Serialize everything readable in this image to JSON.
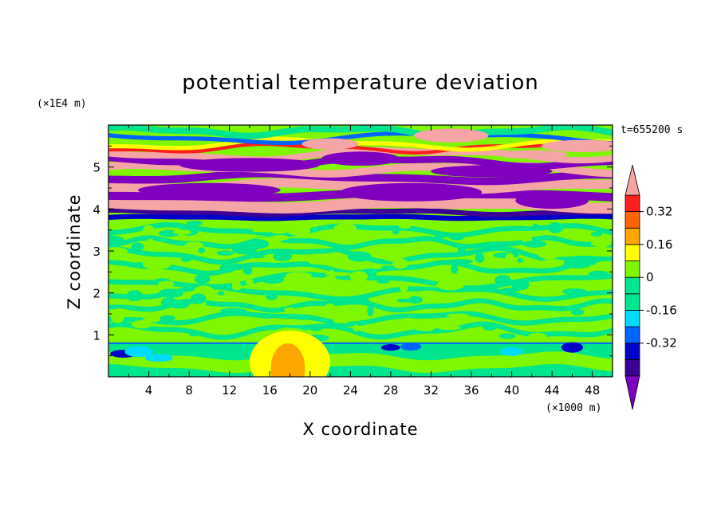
{
  "chart_data": {
    "type": "heatmap",
    "title": "potential temperature deviation",
    "xlabel": "X coordinate",
    "ylabel": "Z coordinate",
    "x_unit": "(×1000 m)",
    "y_unit": "(×1E4 m)",
    "time_label": "t=655200 s",
    "xlim": [
      0,
      50
    ],
    "ylim": [
      0,
      6
    ],
    "xticks": [
      4,
      8,
      12,
      16,
      20,
      24,
      28,
      32,
      36,
      40,
      44,
      48
    ],
    "yticks": [
      1,
      2,
      3,
      4,
      5
    ],
    "colorbar": {
      "levels": [
        -0.48,
        -0.4,
        -0.32,
        -0.24,
        -0.16,
        -0.08,
        0,
        0.08,
        0.16,
        0.24,
        0.32,
        0.4
      ],
      "tick_labels": [
        "0.32",
        "0.16",
        "0",
        "-0.16",
        "-0.32"
      ],
      "tick_values": [
        0.32,
        0.16,
        0,
        -0.16,
        -0.32
      ],
      "colors_low_to_high": [
        "#7f00bf",
        "#3c0096",
        "#0000c8",
        "#0064ff",
        "#00dcff",
        "#00e68c",
        "#00e68c",
        "#7ef700",
        "#ffff00",
        "#ffa500",
        "#ff6400",
        "#ff1e1e",
        "#f5a5a5"
      ],
      "extend": "both"
    }
  }
}
